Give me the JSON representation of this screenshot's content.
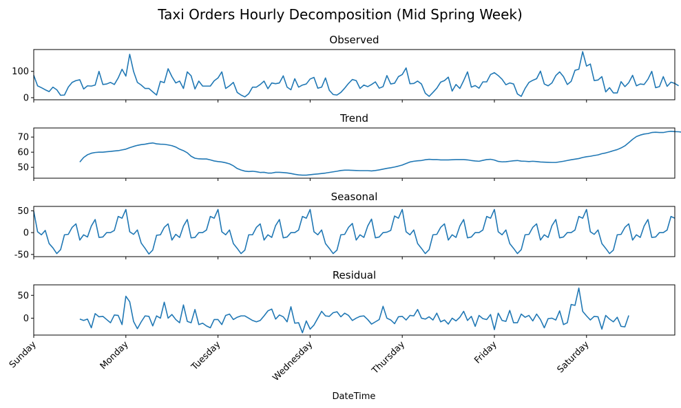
{
  "chart_data": {
    "type": "line",
    "title": "Taxi Orders Hourly Decomposition (Mid Spring Week)",
    "xlabel": "DateTime",
    "x_tick_labels": [
      "Sunday",
      "Monday",
      "Tuesday",
      "Wednesday",
      "Thursday",
      "Friday",
      "Saturday"
    ],
    "x_range_hours": [
      0,
      167
    ],
    "line_color": "#1f77b4",
    "panels": [
      {
        "title": "Observed",
        "ylim": [
          -8,
          183
        ],
        "yticks": [
          0,
          100
        ],
        "start_hour": 0,
        "values": [
          85,
          45,
          38,
          30,
          23,
          40,
          30,
          9,
          10,
          40,
          58,
          65,
          68,
          33,
          45,
          44,
          48,
          100,
          50,
          52,
          58,
          50,
          75,
          108,
          82,
          165,
          100,
          58,
          48,
          35,
          35,
          22,
          10,
          62,
          57,
          110,
          80,
          56,
          63,
          35,
          98,
          83,
          33,
          63,
          44,
          44,
          44,
          64,
          75,
          98,
          35,
          45,
          58,
          20,
          10,
          3,
          15,
          40,
          40,
          50,
          63,
          34,
          56,
          53,
          56,
          83,
          40,
          30,
          72,
          40,
          48,
          52,
          71,
          77,
          36,
          40,
          75,
          28,
          12,
          10,
          20,
          36,
          54,
          69,
          65,
          35,
          48,
          42,
          50,
          60,
          36,
          42,
          84,
          52,
          55,
          80,
          88,
          113,
          53,
          54,
          63,
          52,
          17,
          5,
          20,
          36,
          59,
          65,
          78,
          25,
          50,
          35,
          65,
          98,
          40,
          46,
          36,
          60,
          60,
          88,
          95,
          84,
          70,
          49,
          56,
          52,
          14,
          5,
          35,
          58,
          66,
          72,
          101,
          52,
          45,
          56,
          84,
          98,
          80,
          50,
          62,
          104,
          108,
          175,
          120,
          128,
          65,
          67,
          80,
          22,
          38,
          18,
          18,
          61,
          42,
          57,
          85,
          45,
          52,
          50,
          70,
          100,
          38,
          42,
          80,
          43,
          59,
          54,
          45
        ]
      },
      {
        "title": "Trend",
        "ylim": [
          42.8,
          76
        ],
        "yticks": [
          50,
          60,
          70
        ],
        "start_hour": 12,
        "values": [
          53.5,
          56.5,
          58.3,
          59.3,
          59.8,
          60.0,
          60.0,
          60.3,
          60.5,
          60.8,
          61.0,
          61.5,
          62.0,
          63.0,
          63.8,
          64.5,
          65.0,
          65.3,
          65.8,
          66.1,
          65.5,
          65.3,
          65.2,
          64.8,
          64.3,
          63.4,
          62.0,
          61.0,
          59.6,
          57.3,
          56.0,
          55.6,
          55.5,
          55.5,
          54.9,
          54.2,
          53.8,
          53.5,
          53.0,
          52.3,
          51.0,
          49.2,
          48.2,
          47.5,
          47.2,
          47.4,
          47.1,
          46.6,
          46.7,
          46.2,
          46.2,
          46.7,
          46.7,
          46.5,
          46.3,
          45.9,
          45.4,
          45.0,
          44.8,
          44.8,
          45.1,
          45.4,
          45.6,
          45.9,
          46.2,
          46.6,
          47.0,
          47.4,
          47.9,
          48.1,
          48.1,
          48.0,
          47.9,
          47.8,
          47.8,
          47.8,
          47.6,
          47.9,
          48.3,
          48.8,
          49.3,
          49.7,
          50.2,
          50.8,
          51.5,
          52.5,
          53.5,
          54.0,
          54.3,
          54.5,
          55.0,
          55.3,
          55.1,
          55.1,
          54.9,
          54.9,
          54.9,
          55.0,
          55.1,
          55.1,
          55.1,
          54.9,
          54.5,
          54.2,
          54.0,
          54.6,
          55.1,
          55.3,
          54.8,
          53.9,
          53.6,
          53.7,
          54.0,
          54.3,
          54.5,
          54.1,
          54.0,
          53.8,
          54.0,
          53.8,
          53.5,
          53.4,
          53.3,
          53.2,
          53.2,
          53.6,
          54.0,
          54.5,
          55.0,
          55.4,
          55.8,
          56.5,
          57.0,
          57.3,
          57.8,
          58.2,
          59.0,
          59.5,
          60.2,
          61.0,
          61.7,
          62.8,
          64.2,
          66.3,
          68.5,
          70.3,
          71.3,
          72.0,
          72.3,
          73.0,
          73.2,
          73.0,
          73.0,
          73.5,
          73.8,
          73.6,
          73.5,
          73.2,
          72.5,
          72.0,
          71.5,
          71.0,
          70.9,
          70.9,
          70.6,
          70.0,
          69.7,
          69.3,
          68.6,
          68.0,
          67.9,
          67.2,
          65.5,
          63.0,
          57.1
        ]
      },
      {
        "title": "Seasonal",
        "ylim": [
          -55,
          60
        ],
        "yticks": [
          -50,
          0,
          50
        ],
        "start_hour": 0,
        "values": [
          49,
          2,
          -5,
          5,
          -25,
          -35,
          -48,
          -39,
          -5,
          -4,
          12,
          20,
          -17,
          -5,
          -10,
          15,
          30,
          -11,
          -10,
          0,
          0,
          5,
          37,
          33,
          53,
          2,
          -4,
          6,
          -24,
          -36,
          -49,
          -40,
          -6,
          -5,
          12,
          20,
          -17,
          -4,
          -11,
          15,
          30,
          -12,
          -11,
          0,
          0,
          6,
          37,
          33,
          53,
          2,
          -5,
          6,
          -25,
          -36,
          -48,
          -40,
          -5,
          -5,
          12,
          20,
          -17,
          -5,
          -11,
          16,
          30,
          -12,
          -10,
          0,
          0,
          6,
          37,
          33,
          53,
          2,
          -5,
          6,
          -25,
          -36,
          -48,
          -40,
          -5,
          -4,
          12,
          21,
          -17,
          -5,
          -11,
          15,
          31,
          -12,
          -10,
          0,
          1,
          5,
          38,
          33,
          53,
          2,
          -5,
          6,
          -25,
          -36,
          -48,
          -39,
          -5,
          -4,
          12,
          20,
          -17,
          -5,
          -11,
          15,
          30,
          -12,
          -10,
          0,
          0,
          6,
          37,
          33,
          53,
          2,
          -5,
          6,
          -25,
          -36,
          -48,
          -39,
          -5,
          -4,
          12,
          20,
          -17,
          -5,
          -11,
          16,
          30,
          -12,
          -10,
          0,
          0,
          6,
          37,
          33,
          53,
          2,
          -4,
          6,
          -25,
          -36,
          -48,
          -40,
          -5,
          -4,
          12,
          20,
          -17,
          -5,
          -11,
          15,
          30,
          -11,
          -10,
          0,
          0,
          6,
          37,
          33
        ]
      },
      {
        "title": "Residual",
        "ylim": [
          -37,
          73
        ],
        "yticks": [
          0,
          50
        ],
        "start_hour": 12,
        "values": [
          -2,
          -5,
          -2,
          -21,
          10,
          3,
          4,
          -3,
          -10,
          7,
          6,
          -14,
          48,
          36,
          -7,
          -23,
          -8,
          5,
          4,
          -17,
          5,
          0,
          35,
          0,
          8,
          -3,
          -10,
          29,
          -7,
          -10,
          19,
          -14,
          -11,
          -17,
          -21,
          -3,
          -3,
          -14,
          6,
          9,
          -3,
          2,
          5,
          5,
          0,
          -5,
          -8,
          -5,
          5,
          16,
          20,
          -2,
          7,
          3,
          -8,
          25,
          -11,
          -10,
          -32,
          -6,
          -24,
          -15,
          0,
          15,
          5,
          4,
          12,
          14,
          3,
          11,
          6,
          -5,
          0,
          4,
          5,
          -3,
          -13,
          -8,
          -3,
          26,
          0,
          -4,
          -12,
          3,
          4,
          -4,
          6,
          5,
          19,
          0,
          -2,
          3,
          -4,
          11,
          -8,
          -4,
          -13,
          0,
          -6,
          2,
          15,
          -5,
          4,
          -18,
          6,
          -1,
          -3,
          8,
          -25,
          11,
          -5,
          -7,
          17,
          -10,
          -10,
          9,
          2,
          6,
          -6,
          9,
          -3,
          -21,
          -1,
          0,
          -4,
          16,
          -14,
          -10,
          30,
          28,
          66,
          15,
          5,
          -4,
          4,
          3,
          -24,
          6,
          -2,
          -8,
          2,
          -18,
          -19,
          6
        ]
      }
    ]
  }
}
